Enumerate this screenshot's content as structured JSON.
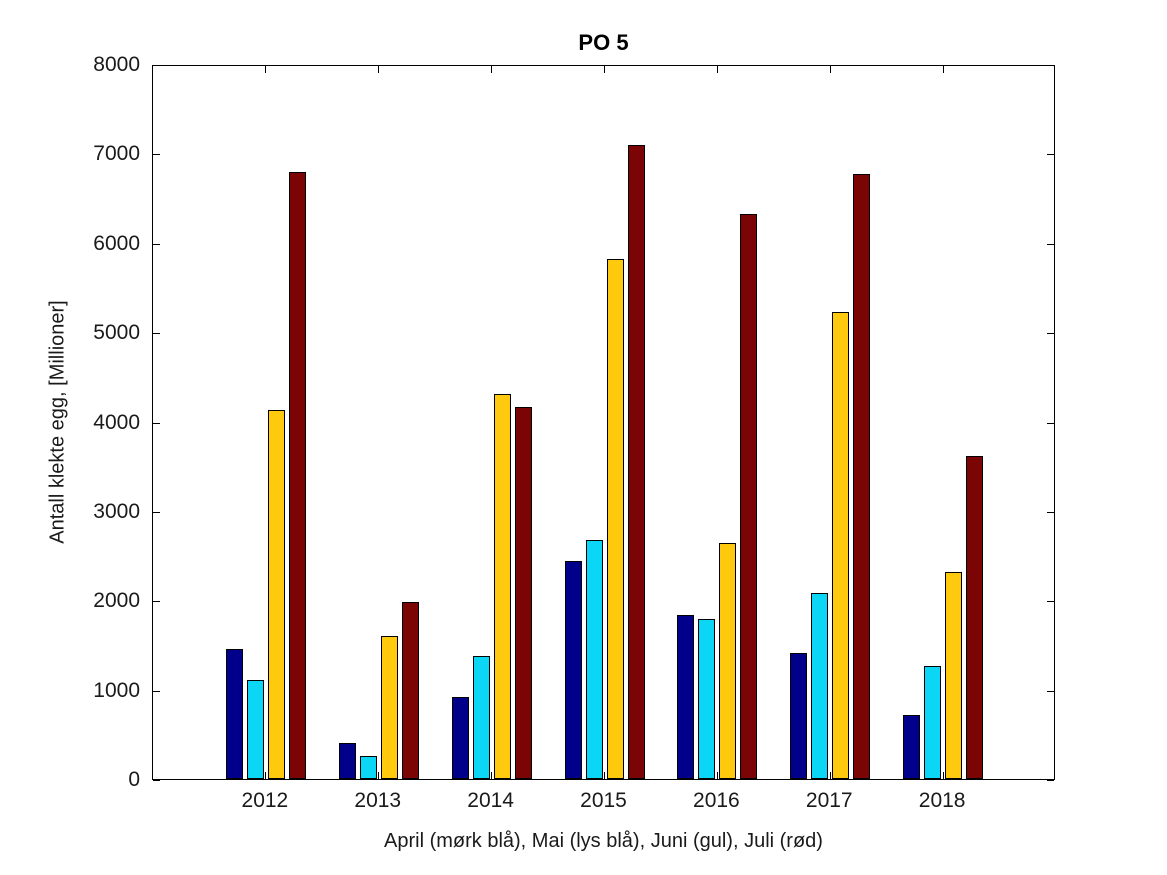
{
  "chart_data": {
    "type": "bar",
    "title": "PO 5",
    "xlabel": "April (mørk blå), Mai (lys blå), Juni (gul), Juli (rød)",
    "ylabel": "Antall klekte egg, [Millioner]",
    "categories": [
      "2012",
      "2013",
      "2014",
      "2015",
      "2016",
      "2017",
      "2018"
    ],
    "series": [
      {
        "name": "April",
        "color": "#00008B",
        "values": [
          1450,
          400,
          920,
          2440,
          1830,
          1410,
          715
        ]
      },
      {
        "name": "Mai",
        "color": "#0BD6F5",
        "values": [
          1110,
          255,
          1380,
          2670,
          1790,
          2080,
          1260
        ]
      },
      {
        "name": "Juni",
        "color": "#FFCA0E",
        "values": [
          4130,
          1600,
          4310,
          5820,
          2640,
          5220,
          2320
        ]
      },
      {
        "name": "Juli",
        "color": "#7B0505",
        "values": [
          6790,
          1975,
          4160,
          7090,
          6320,
          6770,
          3610
        ]
      }
    ],
    "ylim": [
      0,
      8000
    ],
    "yticks": [
      0,
      1000,
      2000,
      3000,
      4000,
      5000,
      6000,
      7000,
      8000
    ],
    "grid": false,
    "legend_position": "none",
    "bar_edge_color": "#000000",
    "axis_color": "#000000"
  }
}
